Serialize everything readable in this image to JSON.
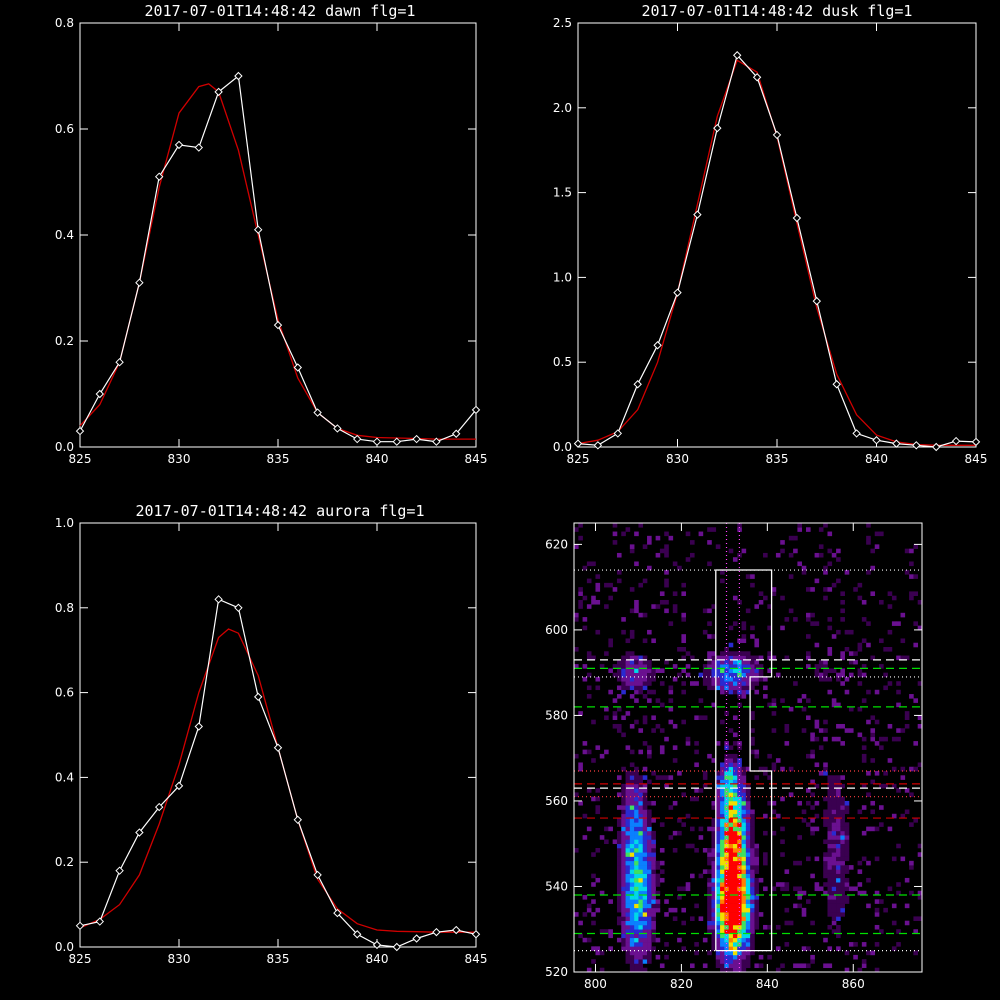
{
  "chart_data": [
    {
      "type": "line",
      "title": "2017-07-01T14:48:42 dawn flg=1",
      "xlim": [
        825,
        845
      ],
      "ylim": [
        0,
        0.8
      ],
      "x_ticks": [
        "825",
        "830",
        "835",
        "840",
        "845"
      ],
      "y_ticks": [
        "0.0",
        "0.2",
        "0.4",
        "0.6",
        "0.8"
      ],
      "series": [
        {
          "style": "white line with diamond markers",
          "color": "#ffffff",
          "x": [
            825,
            826,
            827,
            828,
            829,
            830,
            831,
            832,
            833,
            834,
            835,
            836,
            837,
            838,
            839,
            840,
            841,
            842,
            843,
            844,
            845
          ],
          "y": [
            0.03,
            0.1,
            0.16,
            0.31,
            0.51,
            0.57,
            0.565,
            0.67,
            0.7,
            0.41,
            0.23,
            0.15,
            0.065,
            0.035,
            0.015,
            0.01,
            0.01,
            0.015,
            0.01,
            0.025,
            0.07
          ]
        },
        {
          "style": "red fit",
          "color": "#d00000",
          "x": [
            825,
            826,
            827,
            828,
            829,
            830,
            831,
            831.5,
            832,
            833,
            834,
            835,
            836,
            837,
            838,
            839,
            840,
            841,
            842,
            843,
            844,
            845
          ],
          "y": [
            0.04,
            0.08,
            0.16,
            0.31,
            0.49,
            0.63,
            0.68,
            0.685,
            0.67,
            0.56,
            0.4,
            0.24,
            0.13,
            0.065,
            0.035,
            0.022,
            0.018,
            0.017,
            0.016,
            0.015,
            0.015,
            0.015
          ]
        }
      ]
    },
    {
      "type": "line",
      "title": "2017-07-01T14:48:42 dusk flg=1",
      "xlim": [
        825,
        845
      ],
      "ylim": [
        0,
        2.5
      ],
      "x_ticks": [
        "825",
        "830",
        "835",
        "840",
        "845"
      ],
      "y_ticks": [
        "0.0",
        "0.5",
        "1.0",
        "1.5",
        "2.0",
        "2.5"
      ],
      "series": [
        {
          "style": "white line with diamond markers",
          "color": "#ffffff",
          "x": [
            825,
            826,
            827,
            828,
            829,
            830,
            831,
            832,
            833,
            834,
            835,
            836,
            837,
            838,
            839,
            840,
            841,
            842,
            843,
            844,
            845
          ],
          "y": [
            0.02,
            0.01,
            0.08,
            0.37,
            0.6,
            0.91,
            1.37,
            1.88,
            2.31,
            2.18,
            1.84,
            1.35,
            0.86,
            0.37,
            0.08,
            0.04,
            0.02,
            0.01,
            0.0,
            0.035,
            0.03
          ]
        },
        {
          "style": "red fit",
          "color": "#d00000",
          "x": [
            825,
            826,
            827,
            828,
            829,
            830,
            831,
            832,
            833,
            834,
            835,
            836,
            837,
            838,
            839,
            840,
            841,
            842,
            843,
            844,
            845
          ],
          "y": [
            0.02,
            0.04,
            0.09,
            0.22,
            0.5,
            0.91,
            1.43,
            1.95,
            2.28,
            2.21,
            1.83,
            1.32,
            0.82,
            0.43,
            0.19,
            0.07,
            0.03,
            0.015,
            0.01,
            0.01,
            0.01
          ]
        }
      ]
    },
    {
      "type": "line",
      "title": "2017-07-01T14:48:42 aurora flg=1",
      "xlim": [
        825,
        845
      ],
      "ylim": [
        0,
        1.0
      ],
      "x_ticks": [
        "825",
        "830",
        "835",
        "840",
        "845"
      ],
      "y_ticks": [
        "0.0",
        "0.2",
        "0.4",
        "0.6",
        "0.8",
        "1.0"
      ],
      "series": [
        {
          "style": "white line with diamond markers",
          "color": "#ffffff",
          "x": [
            825,
            826,
            827,
            828,
            829,
            830,
            831,
            832,
            833,
            834,
            835,
            836,
            837,
            838,
            839,
            840,
            841,
            842,
            843,
            844,
            845
          ],
          "y": [
            0.05,
            0.06,
            0.18,
            0.27,
            0.33,
            0.38,
            0.52,
            0.82,
            0.8,
            0.59,
            0.47,
            0.3,
            0.17,
            0.08,
            0.03,
            0.005,
            0.0,
            0.02,
            0.035,
            0.04,
            0.03
          ]
        },
        {
          "style": "red fit",
          "color": "#d00000",
          "x": [
            825,
            826,
            827,
            828,
            829,
            830,
            831,
            832,
            832.5,
            833,
            834,
            835,
            836,
            837,
            838,
            839,
            840,
            841,
            842,
            843,
            844,
            845
          ],
          "y": [
            0.045,
            0.065,
            0.1,
            0.17,
            0.29,
            0.43,
            0.6,
            0.73,
            0.75,
            0.74,
            0.64,
            0.47,
            0.3,
            0.16,
            0.09,
            0.055,
            0.04,
            0.037,
            0.036,
            0.035,
            0.035,
            0.035
          ]
        }
      ]
    },
    {
      "type": "heatmap",
      "title": "",
      "xlim": [
        795,
        876
      ],
      "ylim": [
        520,
        625
      ],
      "x_ticks": [
        "800",
        "820",
        "840",
        "860"
      ],
      "y_ticks": [
        "520",
        "540",
        "560",
        "580",
        "600",
        "620"
      ],
      "colormap": [
        "#000000",
        "#3a0050",
        "#6a1090",
        "#2a2ad0",
        "#0a80ff",
        "#00d8e8",
        "#40e060",
        "#f0e000",
        "#ff8000",
        "#ff0000"
      ],
      "emission_blobs": [
        {
          "x": 832,
          "y": 534,
          "sx": 2.5,
          "sy": 7,
          "peak": 1.0
        },
        {
          "x": 832,
          "y": 545,
          "sx": 2.5,
          "sy": 9,
          "peak": 0.72
        },
        {
          "x": 832,
          "y": 556,
          "sx": 2.0,
          "sy": 7,
          "peak": 0.5
        },
        {
          "x": 831,
          "y": 565,
          "sx": 1.5,
          "sy": 3,
          "peak": 0.35
        },
        {
          "x": 832,
          "y": 590,
          "sx": 4.0,
          "sy": 3,
          "peak": 0.45
        },
        {
          "x": 810,
          "y": 538,
          "sx": 2.5,
          "sy": 10,
          "peak": 0.55
        },
        {
          "x": 809,
          "y": 555,
          "sx": 2.0,
          "sy": 8,
          "peak": 0.32
        },
        {
          "x": 809,
          "y": 590,
          "sx": 3.0,
          "sy": 3,
          "peak": 0.28
        },
        {
          "x": 856,
          "y": 548,
          "sx": 2.5,
          "sy": 16,
          "peak": 0.18
        },
        {
          "x": 853,
          "y": 590,
          "sx": 3.0,
          "sy": 4,
          "peak": 0.1
        }
      ],
      "white_box_outline_xy": [
        [
          828,
          525
        ],
        [
          841,
          525
        ],
        [
          841,
          567
        ],
        [
          836,
          567
        ],
        [
          836,
          589
        ],
        [
          841,
          589
        ],
        [
          841,
          614
        ],
        [
          828,
          614
        ],
        [
          828,
          525
        ]
      ],
      "hlines": [
        {
          "y": 614,
          "color": "#ffffff",
          "style": "dotted"
        },
        {
          "y": 593,
          "color": "#ffffff",
          "style": "dashed"
        },
        {
          "y": 591,
          "color": "#00e000",
          "style": "dashed"
        },
        {
          "y": 589,
          "color": "#ffffff",
          "style": "dotted"
        },
        {
          "y": 582,
          "color": "#00e000",
          "style": "dashed"
        },
        {
          "y": 567,
          "color": "#ff4040",
          "style": "dotted"
        },
        {
          "y": 564,
          "color": "#d00000",
          "style": "dashed"
        },
        {
          "y": 563,
          "color": "#ffffff",
          "style": "dashed"
        },
        {
          "y": 561,
          "color": "#ff4040",
          "style": "dotted"
        },
        {
          "y": 556,
          "color": "#d00000",
          "style": "dashed"
        },
        {
          "y": 538,
          "color": "#00e000",
          "style": "dashed"
        },
        {
          "y": 529,
          "color": "#00e000",
          "style": "dashed"
        },
        {
          "y": 525,
          "color": "#ffffff",
          "style": "dotted"
        }
      ],
      "vlines": [
        {
          "x": 830.5,
          "color": "#ff40ff",
          "style": "dotted"
        },
        {
          "x": 833.5,
          "color": "#ff40ff",
          "style": "dotted"
        }
      ]
    }
  ]
}
